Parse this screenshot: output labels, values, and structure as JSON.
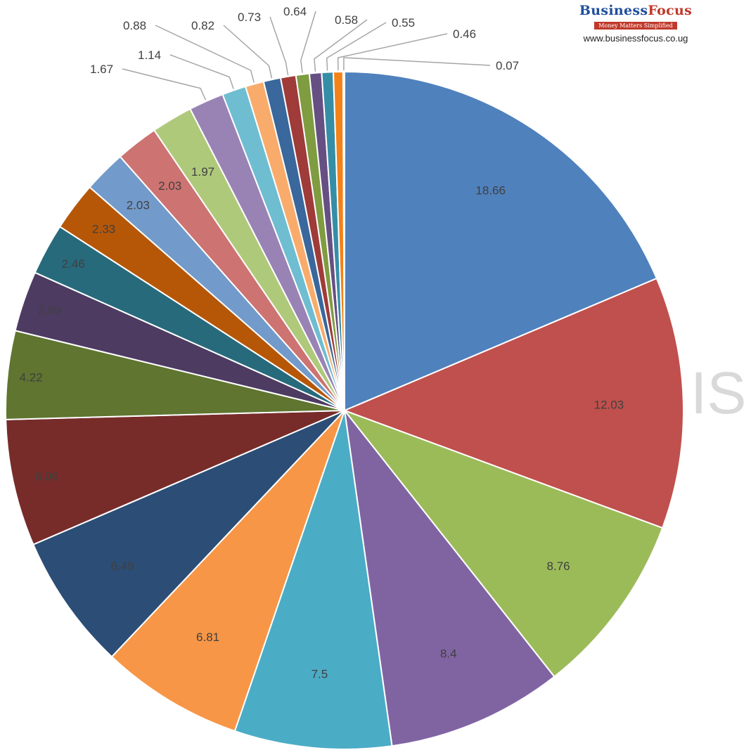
{
  "chart_data": {
    "type": "pie",
    "title": "",
    "values": [
      18.66,
      12.03,
      8.76,
      8.4,
      7.5,
      6.81,
      6.49,
      6.06,
      4.22,
      2.89,
      2.46,
      2.33,
      2.03,
      2.03,
      1.97,
      1.67,
      1.14,
      0.88,
      0.82,
      0.73,
      0.64,
      0.58,
      0.55,
      0.46,
      0.07
    ],
    "labels": [
      "18.66",
      "12.03",
      "8.76",
      "8.4",
      "7.5",
      "6.81",
      "6.49",
      "6.06",
      "4.22",
      "2.89",
      "2.46",
      "2.33",
      "2.03",
      "2.03",
      "1.97",
      "1.67",
      "1.14",
      "0.88",
      "0.82",
      "0.73",
      "0.64",
      "0.58",
      "0.55",
      "0.46",
      "0.07"
    ],
    "colors": [
      "#4f81bd",
      "#c0504d",
      "#9bbb59",
      "#8064a2",
      "#4bacc6",
      "#f79646",
      "#2c4d75",
      "#772c2a",
      "#5f7530",
      "#4d3b62",
      "#276a7c",
      "#b65708",
      "#729aca",
      "#cd7371",
      "#afc97a",
      "#9983b5",
      "#6fbdd1",
      "#f9ab6b",
      "#3a679c",
      "#9f3b38",
      "#7f9c40",
      "#664f83",
      "#358ea6",
      "#f38219",
      "#ffffff"
    ],
    "start_angle": "12 o'clock",
    "direction": "clockwise",
    "legend": "none"
  },
  "logo": {
    "name_part1": "Business",
    "name_part2": "Focus",
    "tagline": "Money Matters Simplified",
    "url": "www.businessfocus.co.ug"
  },
  "watermark": {
    "text": "IS"
  }
}
